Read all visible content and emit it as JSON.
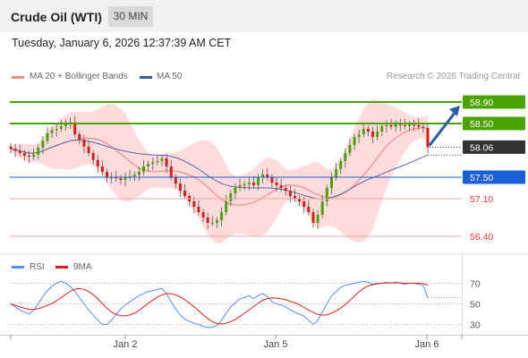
{
  "header": {
    "instrument": "Crude Oil (WTI)",
    "timeframe": "30 MIN"
  },
  "timestamp": "Tuesday, January 6, 2026 12:37:39 AM CET",
  "legend": {
    "ma20_bb": "MA 20 + Bollinger Bands",
    "ma50": "MA 50",
    "credit": "Research © 2026 Trading Central"
  },
  "rsi_legend": {
    "rsi": "RSI",
    "ma9": "9MA"
  },
  "colors": {
    "green": "#4aa300",
    "blue": "#1a5fd6",
    "red": "#e8383c",
    "candle_up": "#4aa300",
    "candle_down": "#d81b1b",
    "band": "#ffd6d6",
    "ma50": "#5566aa",
    "rsi": "#5b8ee6",
    "rsi_ma": "#d91e1e",
    "arrow": "#2a5fa8",
    "dark": "#333333"
  },
  "chart_data": [
    {
      "type": "candlestick",
      "title": "Crude Oil (WTI)",
      "timeframe": "30 MIN",
      "x_ticks": [
        "Jan 2",
        "Jan 5",
        "Jan 6"
      ],
      "ylim": [
        56.1,
        59.2
      ],
      "series": [
        {
          "name": "MA 20 + Bollinger Bands",
          "style": "red line with shaded band"
        },
        {
          "name": "MA 50",
          "style": "blue line"
        }
      ],
      "levels": [
        {
          "value": "58.90",
          "kind": "resistance"
        },
        {
          "value": "58.50",
          "kind": "resistance"
        },
        {
          "value": "58.06",
          "kind": "last price"
        },
        {
          "value": "57.50",
          "kind": "pivot"
        },
        {
          "value": "57.10",
          "kind": "support"
        },
        {
          "value": "56.40",
          "kind": "support"
        }
      ],
      "forecast": "up from 58.06 toward 58.90",
      "closes": [
        58.03,
        57.99,
        57.95,
        57.9,
        57.88,
        57.92,
        58.05,
        58.18,
        58.32,
        58.38,
        58.4,
        58.45,
        58.52,
        58.52,
        58.3,
        58.2,
        58.07,
        57.95,
        57.82,
        57.7,
        57.6,
        57.5,
        57.5,
        57.48,
        57.45,
        57.5,
        57.52,
        57.55,
        57.6,
        57.7,
        57.75,
        57.78,
        57.8,
        57.85,
        57.7,
        57.5,
        57.38,
        57.25,
        57.15,
        57.05,
        56.95,
        56.85,
        56.75,
        56.65,
        56.65,
        56.7,
        56.85,
        57.05,
        57.2,
        57.3,
        57.35,
        57.37,
        57.4,
        57.35,
        57.5,
        57.55,
        57.5,
        57.4,
        57.35,
        57.3,
        57.25,
        57.15,
        57.1,
        57.05,
        56.95,
        56.85,
        56.65,
        56.8,
        57.05,
        57.3,
        57.5,
        57.65,
        57.8,
        57.95,
        58.1,
        58.25,
        58.3,
        58.4,
        58.35,
        58.25,
        58.35,
        58.45,
        58.47,
        58.44,
        58.5,
        58.47,
        58.45,
        58.48,
        58.47,
        58.44,
        58.42,
        58.06
      ]
    },
    {
      "type": "line",
      "title": "RSI",
      "series": [
        {
          "name": "RSI"
        },
        {
          "name": "9MA"
        }
      ],
      "y_ticks": [
        "70",
        "50",
        "30"
      ],
      "ylim": [
        20,
        80
      ],
      "rsi": [
        50,
        47,
        44,
        42,
        40,
        44,
        50,
        57,
        63,
        67,
        70,
        72,
        70,
        67,
        62,
        56,
        50,
        44,
        39,
        34,
        30,
        30,
        34,
        40,
        45,
        49,
        52,
        55,
        58,
        60,
        62,
        63,
        64,
        65,
        60,
        52,
        45,
        39,
        35,
        33,
        31,
        30,
        28,
        27,
        27,
        29,
        34,
        41,
        47,
        51,
        55,
        56,
        58,
        55,
        58,
        60,
        57,
        52,
        50,
        49,
        47,
        44,
        42,
        40,
        38,
        34,
        30,
        34,
        42,
        50,
        58,
        62,
        66,
        68,
        69,
        70,
        71,
        72,
        71,
        69,
        70,
        70,
        71,
        70,
        71,
        70,
        69,
        70,
        70,
        69,
        68,
        56
      ]
    }
  ]
}
